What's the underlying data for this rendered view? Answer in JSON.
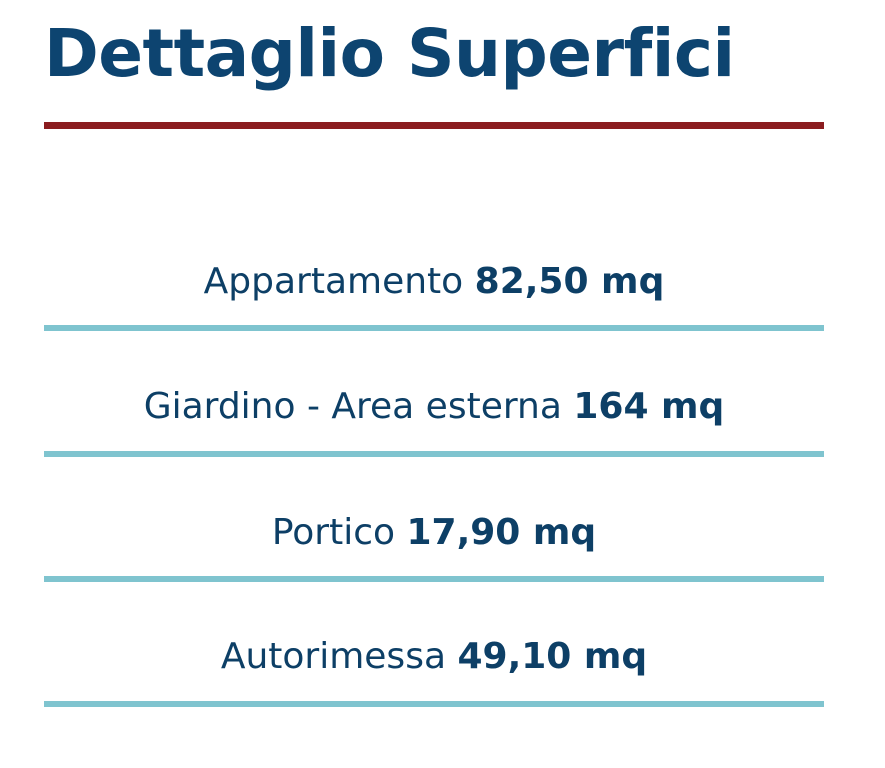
{
  "title": "Dettaglio Superfici",
  "colors": {
    "title": "#0d4470",
    "title_rule": "#8b1c1f",
    "row_rule": "#7fc4cf"
  },
  "rows": [
    {
      "label": "Appartamento",
      "value": "82,50 mq"
    },
    {
      "label": "Giardino - Area esterna",
      "value": "164 mq"
    },
    {
      "label": "Portico",
      "value": "17,90 mq"
    },
    {
      "label": "Autorimessa",
      "value": "49,10 mq"
    }
  ]
}
